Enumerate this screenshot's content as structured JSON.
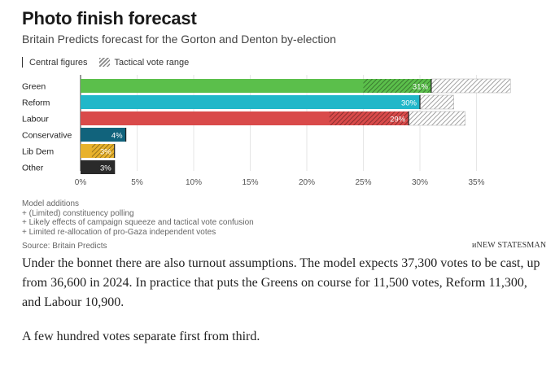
{
  "header": {
    "title": "Photo finish forecast",
    "subtitle": "Britain Predicts forecast for the Gorton and Denton by-election"
  },
  "legend": {
    "central": "Central figures",
    "tactical": "Tactical vote range"
  },
  "chart_data": {
    "type": "bar",
    "orientation": "horizontal",
    "title": "Photo finish forecast",
    "categories": [
      "Green",
      "Reform",
      "Labour",
      "Conservative",
      "Lib Dem",
      "Other"
    ],
    "values": [
      31,
      30,
      29,
      4,
      3,
      3
    ],
    "labels": [
      "31%",
      "30%",
      "29%",
      "4%",
      "3%",
      "3%"
    ],
    "tactical_range": [
      [
        25,
        38
      ],
      [
        30,
        33
      ],
      [
        22,
        34
      ],
      null,
      [
        1,
        3
      ],
      null
    ],
    "colors": [
      "#5bbf4b",
      "#21b7c9",
      "#d94a4a",
      "#11637c",
      "#e8b22c",
      "#2a2a2a"
    ],
    "xticks": [
      "0%",
      "5%",
      "10%",
      "15%",
      "20%",
      "25%",
      "30%",
      "35%"
    ],
    "xtick_values": [
      0,
      5,
      10,
      15,
      20,
      25,
      30,
      35
    ],
    "xlim": [
      0,
      38
    ],
    "grid": true,
    "legend": "top-left"
  },
  "notes": {
    "heading": "Model additions",
    "lines": [
      "+ (Limited) constituency polling",
      "+ Likely effects of campaign squeeze and tactical vote confusion",
      "+ Limited re-allocation of pro-Gaza independent votes"
    ],
    "source": "Source: Britain Predicts",
    "brand": "ᴎNEW STATESMAN"
  },
  "article": {
    "para1": "Under the bonnet there are also turnout assumptions. The model expects 37,300 votes to be cast, up from 36,600 in 2024. In practice that puts the Greens on course for 11,500 votes, Reform 11,300, and Labour 10,900.",
    "para2": "A few hundred votes separate first from third."
  }
}
